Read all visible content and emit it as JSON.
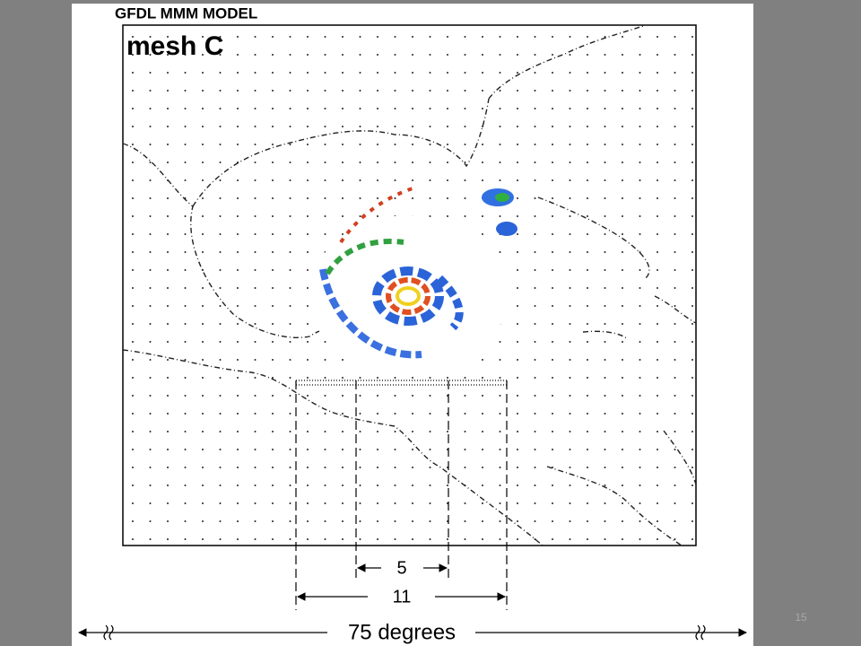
{
  "figure": {
    "title": "GFDL MMM MODEL",
    "mesh_label": "mesh C",
    "inner_span": "5",
    "middle_span": "11",
    "outer_span": "75 degrees"
  },
  "slide_number": "15"
}
